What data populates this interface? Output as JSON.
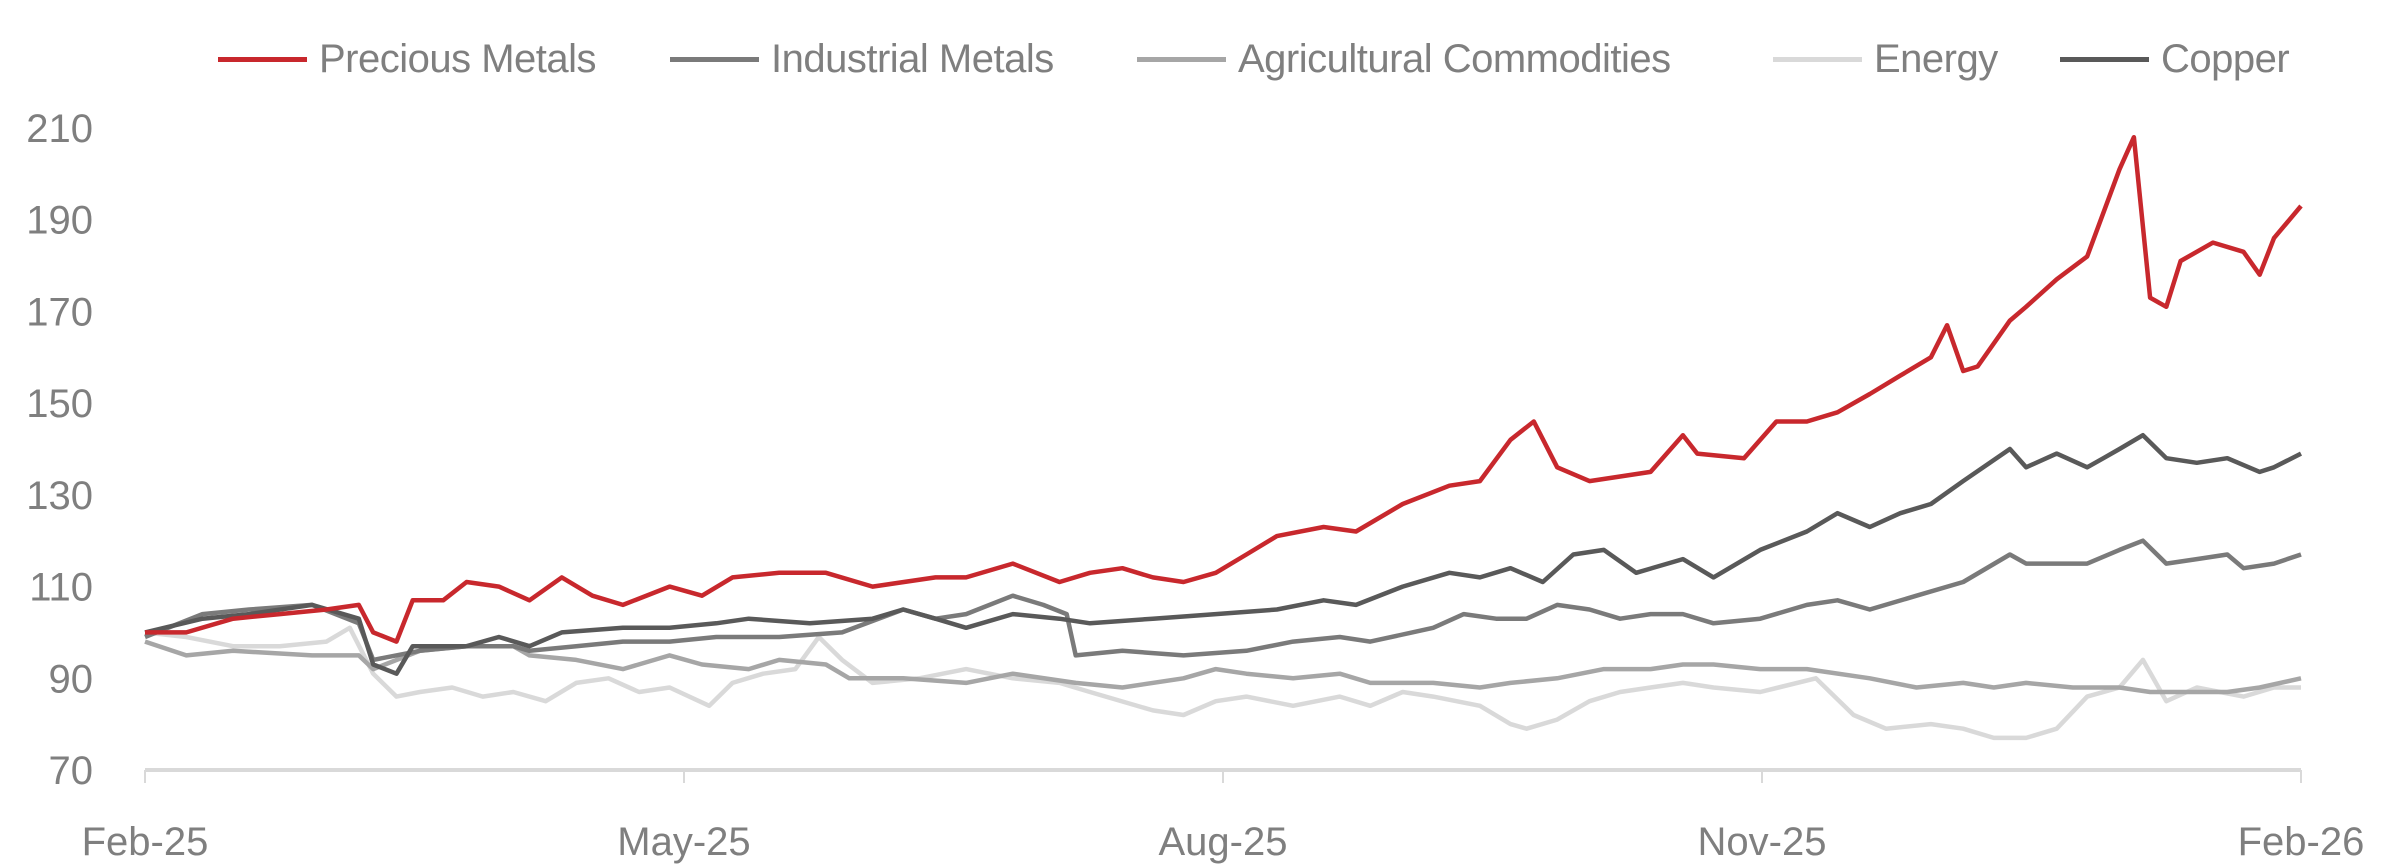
{
  "chart_data": {
    "type": "line",
    "title": "",
    "xlabel": "",
    "ylabel": "",
    "x_unit": "months since Feb-25",
    "xlim": [
      0,
      12
    ],
    "ylim": [
      70,
      210
    ],
    "y_ticks": [
      "70",
      "90",
      "110",
      "130",
      "150",
      "170",
      "190",
      "210"
    ],
    "y_tick_values": [
      70,
      90,
      110,
      130,
      150,
      170,
      190,
      210
    ],
    "x_ticks": [
      "Feb-25",
      "May-25",
      "Aug-25",
      "Nov-25",
      "Feb-26"
    ],
    "x_tick_values": [
      0,
      3,
      6,
      9,
      12
    ],
    "grid": false,
    "legend_position": "top",
    "series": [
      {
        "name": "Precious Metals",
        "color": "#c8282d",
        "x": [
          0,
          0.23,
          0.49,
          0.75,
          1.01,
          1.19,
          1.27,
          1.4,
          1.49,
          1.66,
          1.79,
          1.97,
          2.14,
          2.32,
          2.49,
          2.66,
          2.92,
          3.1,
          3.27,
          3.53,
          3.79,
          4.05,
          4.4,
          4.57,
          4.83,
          5.09,
          5.26,
          5.44,
          5.61,
          5.78,
          5.96,
          6.13,
          6.3,
          6.56,
          6.74,
          7.0,
          7.26,
          7.43,
          7.6,
          7.73,
          7.86,
          8.04,
          8.21,
          8.38,
          8.56,
          8.64,
          8.9,
          9.08,
          9.25,
          9.42,
          9.6,
          9.77,
          9.94,
          10.03,
          10.12,
          10.2,
          10.38,
          10.47,
          10.64,
          10.81,
          10.99,
          11.07,
          11.16,
          11.25,
          11.33,
          11.51,
          11.68,
          11.77,
          11.85,
          12
        ],
        "values": [
          100,
          100,
          103,
          104,
          105,
          106,
          100,
          98,
          107,
          107,
          111,
          110,
          107,
          112,
          108,
          106,
          110,
          108,
          112,
          113,
          113,
          110,
          112,
          112,
          115,
          111,
          113,
          114,
          112,
          111,
          113,
          117,
          121,
          123,
          122,
          128,
          132,
          133,
          142,
          146,
          136,
          133,
          134,
          135,
          143,
          139,
          138,
          146,
          146,
          148,
          152,
          156,
          160,
          167,
          157,
          158,
          168,
          171,
          177,
          182,
          201,
          208,
          173,
          171,
          181,
          185,
          183,
          178,
          186,
          193
        ]
      },
      {
        "name": "Industrial Metals",
        "color": "#7a7a7a",
        "x": [
          0,
          0.32,
          0.58,
          0.93,
          1.19,
          1.27,
          1.53,
          1.79,
          2.05,
          2.14,
          2.4,
          2.66,
          2.92,
          3.18,
          3.53,
          3.88,
          4.22,
          4.4,
          4.57,
          4.83,
          5.0,
          5.13,
          5.18,
          5.44,
          5.78,
          6.13,
          6.39,
          6.65,
          6.82,
          7.17,
          7.34,
          7.52,
          7.69,
          7.86,
          8.04,
          8.21,
          8.38,
          8.56,
          8.73,
          8.99,
          9.25,
          9.42,
          9.6,
          9.86,
          10.12,
          10.38,
          10.47,
          10.73,
          10.81,
          10.99,
          11.12,
          11.25,
          11.42,
          11.59,
          11.68,
          11.85,
          12
        ],
        "values": [
          99,
          104,
          105,
          106,
          102,
          94,
          96,
          97,
          97,
          96,
          97,
          98,
          98,
          99,
          99,
          100,
          105,
          103,
          104,
          108,
          106,
          104,
          95,
          96,
          95,
          96,
          98,
          99,
          98,
          101,
          104,
          103,
          103,
          106,
          105,
          103,
          104,
          104,
          102,
          103,
          106,
          107,
          105,
          108,
          111,
          117,
          115,
          115,
          115,
          118,
          120,
          115,
          116,
          117,
          114,
          115,
          117
        ]
      },
      {
        "name": "Agricultural Commodities",
        "color": "#a6a6a6",
        "x": [
          0,
          0.23,
          0.49,
          0.93,
          1.19,
          1.27,
          1.53,
          1.79,
          2.05,
          2.14,
          2.4,
          2.66,
          2.92,
          3.1,
          3.36,
          3.53,
          3.79,
          3.92,
          4.22,
          4.57,
          4.83,
          5.18,
          5.44,
          5.78,
          5.96,
          6.13,
          6.39,
          6.65,
          6.82,
          7.17,
          7.43,
          7.6,
          7.86,
          8.12,
          8.38,
          8.56,
          8.73,
          8.99,
          9.25,
          9.6,
          9.86,
          10.12,
          10.29,
          10.47,
          10.73,
          10.99,
          11.16,
          11.33,
          11.59,
          11.77,
          12
        ],
        "values": [
          98,
          95,
          96,
          95,
          95,
          92,
          96,
          97,
          97,
          95,
          94,
          92,
          95,
          93,
          92,
          94,
          93,
          90,
          90,
          89,
          91,
          89,
          88,
          90,
          92,
          91,
          90,
          91,
          89,
          89,
          88,
          89,
          90,
          92,
          92,
          93,
          93,
          92,
          92,
          90,
          88,
          89,
          88,
          89,
          88,
          88,
          87,
          87,
          87,
          88,
          90
        ]
      },
      {
        "name": "Energy",
        "color": "#d9d9d9",
        "x": [
          0,
          0.23,
          0.49,
          0.75,
          1.01,
          1.14,
          1.27,
          1.4,
          1.53,
          1.71,
          1.88,
          2.05,
          2.23,
          2.4,
          2.58,
          2.75,
          2.92,
          3.14,
          3.27,
          3.44,
          3.62,
          3.75,
          3.88,
          4.05,
          4.31,
          4.57,
          4.83,
          5.09,
          5.26,
          5.61,
          5.78,
          5.96,
          6.13,
          6.39,
          6.65,
          6.82,
          7.0,
          7.17,
          7.43,
          7.6,
          7.69,
          7.86,
          8.04,
          8.21,
          8.38,
          8.56,
          8.73,
          8.99,
          9.3,
          9.51,
          9.69,
          9.94,
          10.12,
          10.29,
          10.47,
          10.64,
          10.81,
          10.99,
          11.12,
          11.25,
          11.42,
          11.68,
          11.85,
          12
        ],
        "values": [
          100,
          99,
          97,
          97,
          98,
          101,
          91,
          86,
          87,
          88,
          86,
          87,
          85,
          89,
          90,
          87,
          88,
          84,
          89,
          91,
          92,
          99,
          94,
          89,
          90,
          92,
          90,
          89,
          87,
          83,
          82,
          85,
          86,
          84,
          86,
          84,
          87,
          86,
          84,
          80,
          79,
          81,
          85,
          87,
          88,
          89,
          88,
          87,
          90,
          82,
          79,
          80,
          79,
          77,
          77,
          79,
          86,
          88,
          94,
          85,
          88,
          86,
          88,
          88
        ]
      },
      {
        "name": "Copper",
        "color": "#595959",
        "x": [
          0,
          0.32,
          0.58,
          0.93,
          1.19,
          1.27,
          1.4,
          1.49,
          1.79,
          1.97,
          2.14,
          2.32,
          2.66,
          2.92,
          3.18,
          3.36,
          3.7,
          4.05,
          4.22,
          4.4,
          4.57,
          4.83,
          5.09,
          5.26,
          5.61,
          5.96,
          6.3,
          6.56,
          6.74,
          7.0,
          7.26,
          7.43,
          7.6,
          7.78,
          7.95,
          8.12,
          8.3,
          8.56,
          8.73,
          8.99,
          9.25,
          9.42,
          9.6,
          9.77,
          9.94,
          10.12,
          10.38,
          10.47,
          10.64,
          10.81,
          10.9,
          10.99,
          11.12,
          11.25,
          11.42,
          11.59,
          11.77,
          11.85,
          12
        ],
        "values": [
          100,
          103,
          104,
          106,
          103,
          93,
          91,
          97,
          97,
          99,
          97,
          100,
          101,
          101,
          102,
          103,
          102,
          103,
          105,
          103,
          101,
          104,
          103,
          102,
          103,
          104,
          105,
          107,
          106,
          110,
          113,
          112,
          114,
          111,
          117,
          118,
          113,
          116,
          112,
          118,
          122,
          126,
          123,
          126,
          128,
          133,
          140,
          136,
          139,
          136,
          138,
          140,
          143,
          138,
          137,
          138,
          135,
          136,
          139
        ]
      }
    ]
  }
}
